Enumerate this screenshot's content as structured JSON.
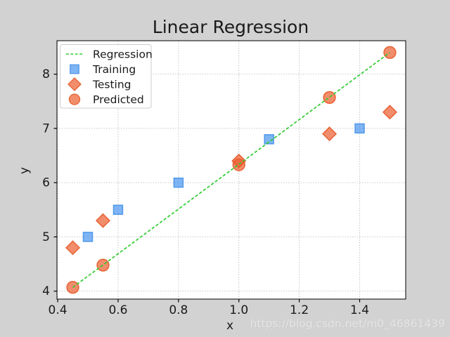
{
  "figure": {
    "background": "#d2d2d2",
    "plot_background": "#ffffff",
    "grid_color": "#bbbbbb",
    "spine_color": "#000000",
    "text_color": "#1a1a1a",
    "watermark": "https://blog.csdn.net/m0_46861439"
  },
  "chart_data": {
    "type": "scatter",
    "title": "Linear Regression",
    "xlabel": "x",
    "ylabel": "y",
    "xlim": [
      0.3975,
      1.5525
    ],
    "ylim": [
      3.8535,
      8.6165
    ],
    "xticks": [
      0.4,
      0.6,
      0.8,
      1.0,
      1.2,
      1.4
    ],
    "xtick_labels": [
      "0.4",
      "0.6",
      "0.8",
      "1.0",
      "1.2",
      "1.4"
    ],
    "yticks": [
      4,
      5,
      6,
      7,
      8
    ],
    "ytick_labels": [
      "4",
      "5",
      "6",
      "7",
      "8"
    ],
    "grid": true,
    "legend_position": "upper-left",
    "series": [
      {
        "name": "Regression",
        "kind": "line",
        "linestyle": "dashed",
        "color": "#2ecc2e",
        "zorder": 4,
        "points": [
          [
            0.45,
            4.07
          ],
          [
            1.5,
            8.4
          ]
        ]
      },
      {
        "name": "Training",
        "kind": "scatter",
        "marker": "square",
        "fill": "#4895ef",
        "edge": "#3f8ee7",
        "zorder": 1,
        "points": [
          [
            0.5,
            5.0
          ],
          [
            0.6,
            5.5
          ],
          [
            0.8,
            6.0
          ],
          [
            1.1,
            6.8
          ],
          [
            1.4,
            7.0
          ]
        ]
      },
      {
        "name": "Testing",
        "kind": "scatter",
        "marker": "diamond",
        "fill": "#ec5c2d",
        "edge": "#e5521f",
        "zorder": 3,
        "points": [
          [
            0.45,
            4.8
          ],
          [
            0.55,
            5.3
          ],
          [
            1.0,
            6.4
          ],
          [
            1.3,
            6.9
          ],
          [
            1.5,
            7.3
          ]
        ]
      },
      {
        "name": "Predicted",
        "kind": "scatter",
        "marker": "circle",
        "fill": "#ec5c2d",
        "edge": "#e5521f",
        "zorder": 2,
        "points": [
          [
            0.45,
            4.07
          ],
          [
            0.55,
            4.48
          ],
          [
            1.0,
            6.33
          ],
          [
            1.3,
            7.57
          ],
          [
            1.5,
            8.4
          ]
        ]
      }
    ]
  }
}
